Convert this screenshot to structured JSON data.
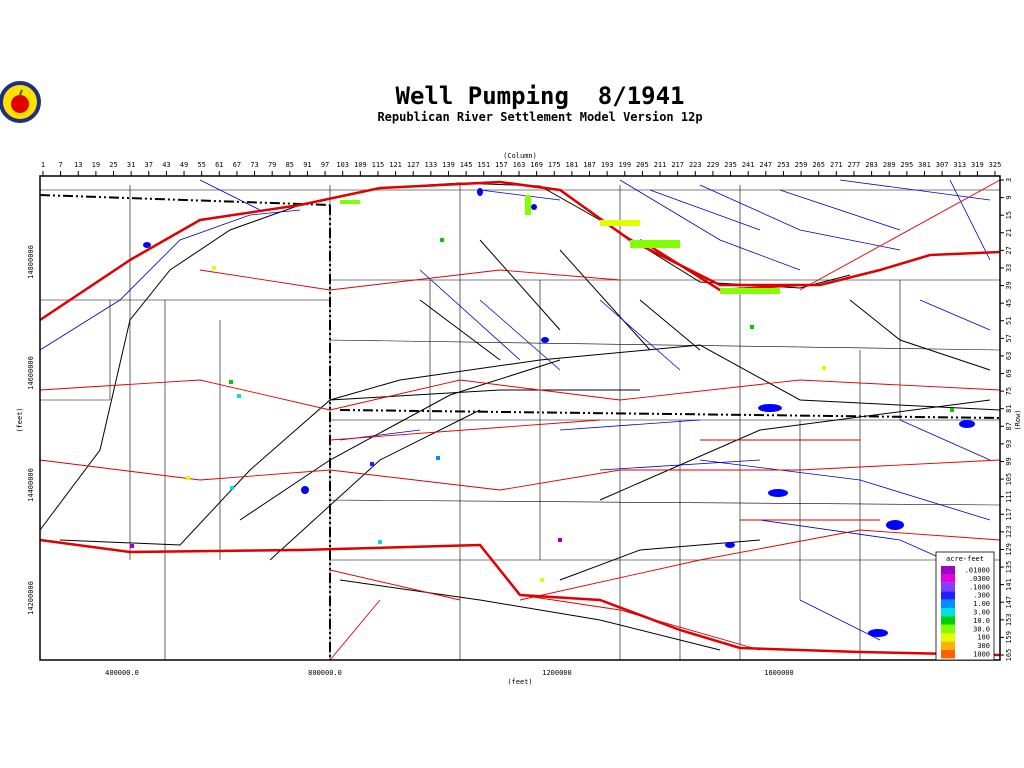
{
  "header": {
    "title": "Well Pumping  8/1941",
    "subtitle": "Republican River Settlement Model Version 12p"
  },
  "axes": {
    "column_label": "(Column)",
    "row_label": "(Row)",
    "x_label": "(feet)",
    "y_label": "(feet)",
    "columns": [
      1,
      7,
      13,
      19,
      25,
      31,
      37,
      43,
      49,
      55,
      61,
      67,
      73,
      79,
      85,
      91,
      97,
      103,
      109,
      115,
      121,
      127,
      133,
      139,
      145,
      151,
      157,
      163,
      169,
      175,
      181,
      187,
      193,
      199,
      205,
      211,
      217,
      223,
      229,
      235,
      241,
      247,
      253,
      259,
      265,
      271,
      277,
      283,
      289,
      295,
      301,
      307,
      313,
      319,
      325
    ],
    "rows": [
      3,
      9,
      15,
      21,
      27,
      33,
      39,
      45,
      51,
      57,
      63,
      69,
      75,
      81,
      87,
      93,
      99,
      105,
      111,
      117,
      123,
      129,
      135,
      141,
      147,
      153,
      159,
      165
    ],
    "x_ticks": [
      "400000.0",
      "800000.0",
      "1200000",
      "1600000"
    ],
    "y_ticks": [
      "14800000",
      "14600000",
      "14400000",
      "14200000"
    ]
  },
  "legend": {
    "title": "acre-feet",
    "labels": [
      ".01000",
      ".0300",
      ".1000",
      ".300",
      "1.00",
      "3.00",
      "10.0",
      "30.0",
      "100",
      "300",
      "1000"
    ],
    "colors": [
      "#a000c8",
      "#e000e0",
      "#8040ff",
      "#2020ff",
      "#0090ff",
      "#00e0e0",
      "#00d000",
      "#80ff00",
      "#e0ff00",
      "#ffb000",
      "#ff6000"
    ]
  }
}
